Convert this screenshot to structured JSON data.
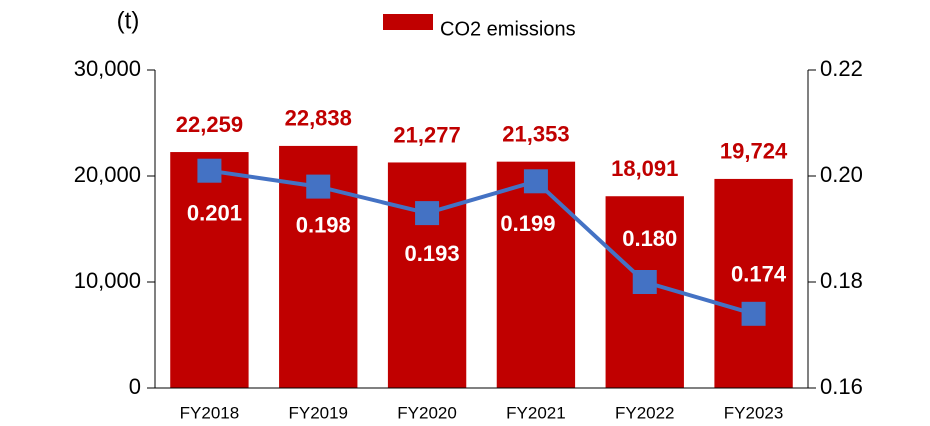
{
  "chart_data": {
    "type": "bar+line",
    "y_label": "(t)",
    "categories": [
      "FY2018",
      "FY2019",
      "FY2020",
      "FY2021",
      "FY2022",
      "FY2023"
    ],
    "series": [
      {
        "name": "CO2 emissions",
        "type": "bar",
        "color": "#c00000",
        "values": [
          22259,
          22838,
          21277,
          21353,
          18091,
          19724
        ],
        "value_labels": [
          "22,259",
          "22,838",
          "21,277",
          "21,353",
          "18,091",
          "19,724"
        ]
      },
      {
        "type": "line",
        "axis": "y2",
        "color": "#4472c4",
        "values": [
          0.201,
          0.198,
          0.193,
          0.199,
          0.18,
          0.174
        ],
        "value_labels": [
          "0.201",
          "0.198",
          "0.193",
          "0.199",
          "0.180",
          "0.174"
        ]
      }
    ],
    "ylim": [
      0,
      30000
    ],
    "yticks": [
      0,
      {
        "value": 10000,
        "label": "10,000"
      },
      {
        "value": 20000,
        "label": "20,000"
      },
      {
        "value": 30000,
        "label": "30,000"
      }
    ],
    "y2lim": [
      0.16,
      0.22
    ],
    "y2ticks": [
      0.16,
      0.18,
      {
        "value": 0.2,
        "label": "0.20"
      },
      0.22
    ],
    "legend": "top"
  }
}
